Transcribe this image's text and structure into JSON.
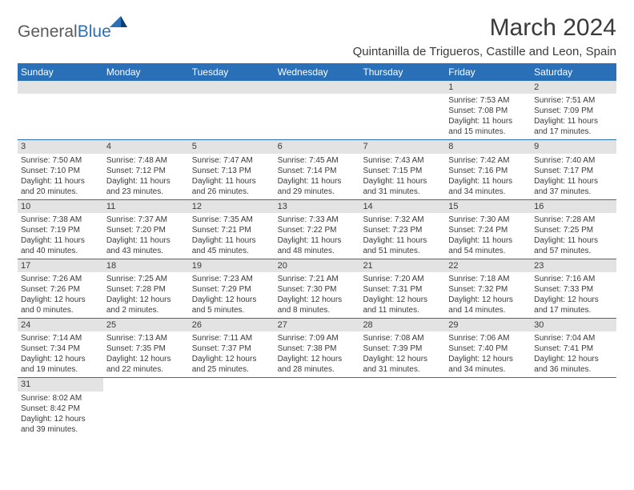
{
  "logo": {
    "part1": "General",
    "part2": "Blue"
  },
  "title": "March 2024",
  "location": "Quintanilla de Trigueros, Castille and Leon, Spain",
  "dow": [
    "Sunday",
    "Monday",
    "Tuesday",
    "Wednesday",
    "Thursday",
    "Friday",
    "Saturday"
  ],
  "colors": {
    "header_bg": "#2970b8",
    "header_text": "#ffffff",
    "daynum_bg": "#e3e3e3",
    "text": "#3a3a3a",
    "border": "#2970b8"
  },
  "weeks": [
    [
      null,
      null,
      null,
      null,
      null,
      {
        "n": "1",
        "sr": "7:53 AM",
        "ss": "7:08 PM",
        "dl": "11 hours and 15 minutes."
      },
      {
        "n": "2",
        "sr": "7:51 AM",
        "ss": "7:09 PM",
        "dl": "11 hours and 17 minutes."
      }
    ],
    [
      {
        "n": "3",
        "sr": "7:50 AM",
        "ss": "7:10 PM",
        "dl": "11 hours and 20 minutes."
      },
      {
        "n": "4",
        "sr": "7:48 AM",
        "ss": "7:12 PM",
        "dl": "11 hours and 23 minutes."
      },
      {
        "n": "5",
        "sr": "7:47 AM",
        "ss": "7:13 PM",
        "dl": "11 hours and 26 minutes."
      },
      {
        "n": "6",
        "sr": "7:45 AM",
        "ss": "7:14 PM",
        "dl": "11 hours and 29 minutes."
      },
      {
        "n": "7",
        "sr": "7:43 AM",
        "ss": "7:15 PM",
        "dl": "11 hours and 31 minutes."
      },
      {
        "n": "8",
        "sr": "7:42 AM",
        "ss": "7:16 PM",
        "dl": "11 hours and 34 minutes."
      },
      {
        "n": "9",
        "sr": "7:40 AM",
        "ss": "7:17 PM",
        "dl": "11 hours and 37 minutes."
      }
    ],
    [
      {
        "n": "10",
        "sr": "7:38 AM",
        "ss": "7:19 PM",
        "dl": "11 hours and 40 minutes."
      },
      {
        "n": "11",
        "sr": "7:37 AM",
        "ss": "7:20 PM",
        "dl": "11 hours and 43 minutes."
      },
      {
        "n": "12",
        "sr": "7:35 AM",
        "ss": "7:21 PM",
        "dl": "11 hours and 45 minutes."
      },
      {
        "n": "13",
        "sr": "7:33 AM",
        "ss": "7:22 PM",
        "dl": "11 hours and 48 minutes."
      },
      {
        "n": "14",
        "sr": "7:32 AM",
        "ss": "7:23 PM",
        "dl": "11 hours and 51 minutes."
      },
      {
        "n": "15",
        "sr": "7:30 AM",
        "ss": "7:24 PM",
        "dl": "11 hours and 54 minutes."
      },
      {
        "n": "16",
        "sr": "7:28 AM",
        "ss": "7:25 PM",
        "dl": "11 hours and 57 minutes."
      }
    ],
    [
      {
        "n": "17",
        "sr": "7:26 AM",
        "ss": "7:26 PM",
        "dl": "12 hours and 0 minutes."
      },
      {
        "n": "18",
        "sr": "7:25 AM",
        "ss": "7:28 PM",
        "dl": "12 hours and 2 minutes."
      },
      {
        "n": "19",
        "sr": "7:23 AM",
        "ss": "7:29 PM",
        "dl": "12 hours and 5 minutes."
      },
      {
        "n": "20",
        "sr": "7:21 AM",
        "ss": "7:30 PM",
        "dl": "12 hours and 8 minutes."
      },
      {
        "n": "21",
        "sr": "7:20 AM",
        "ss": "7:31 PM",
        "dl": "12 hours and 11 minutes."
      },
      {
        "n": "22",
        "sr": "7:18 AM",
        "ss": "7:32 PM",
        "dl": "12 hours and 14 minutes."
      },
      {
        "n": "23",
        "sr": "7:16 AM",
        "ss": "7:33 PM",
        "dl": "12 hours and 17 minutes."
      }
    ],
    [
      {
        "n": "24",
        "sr": "7:14 AM",
        "ss": "7:34 PM",
        "dl": "12 hours and 19 minutes."
      },
      {
        "n": "25",
        "sr": "7:13 AM",
        "ss": "7:35 PM",
        "dl": "12 hours and 22 minutes."
      },
      {
        "n": "26",
        "sr": "7:11 AM",
        "ss": "7:37 PM",
        "dl": "12 hours and 25 minutes."
      },
      {
        "n": "27",
        "sr": "7:09 AM",
        "ss": "7:38 PM",
        "dl": "12 hours and 28 minutes."
      },
      {
        "n": "28",
        "sr": "7:08 AM",
        "ss": "7:39 PM",
        "dl": "12 hours and 31 minutes."
      },
      {
        "n": "29",
        "sr": "7:06 AM",
        "ss": "7:40 PM",
        "dl": "12 hours and 34 minutes."
      },
      {
        "n": "30",
        "sr": "7:04 AM",
        "ss": "7:41 PM",
        "dl": "12 hours and 36 minutes."
      }
    ],
    [
      {
        "n": "31",
        "sr": "8:02 AM",
        "ss": "8:42 PM",
        "dl": "12 hours and 39 minutes."
      },
      null,
      null,
      null,
      null,
      null,
      null
    ]
  ],
  "labels": {
    "sunrise": "Sunrise:",
    "sunset": "Sunset:",
    "daylight": "Daylight:"
  }
}
